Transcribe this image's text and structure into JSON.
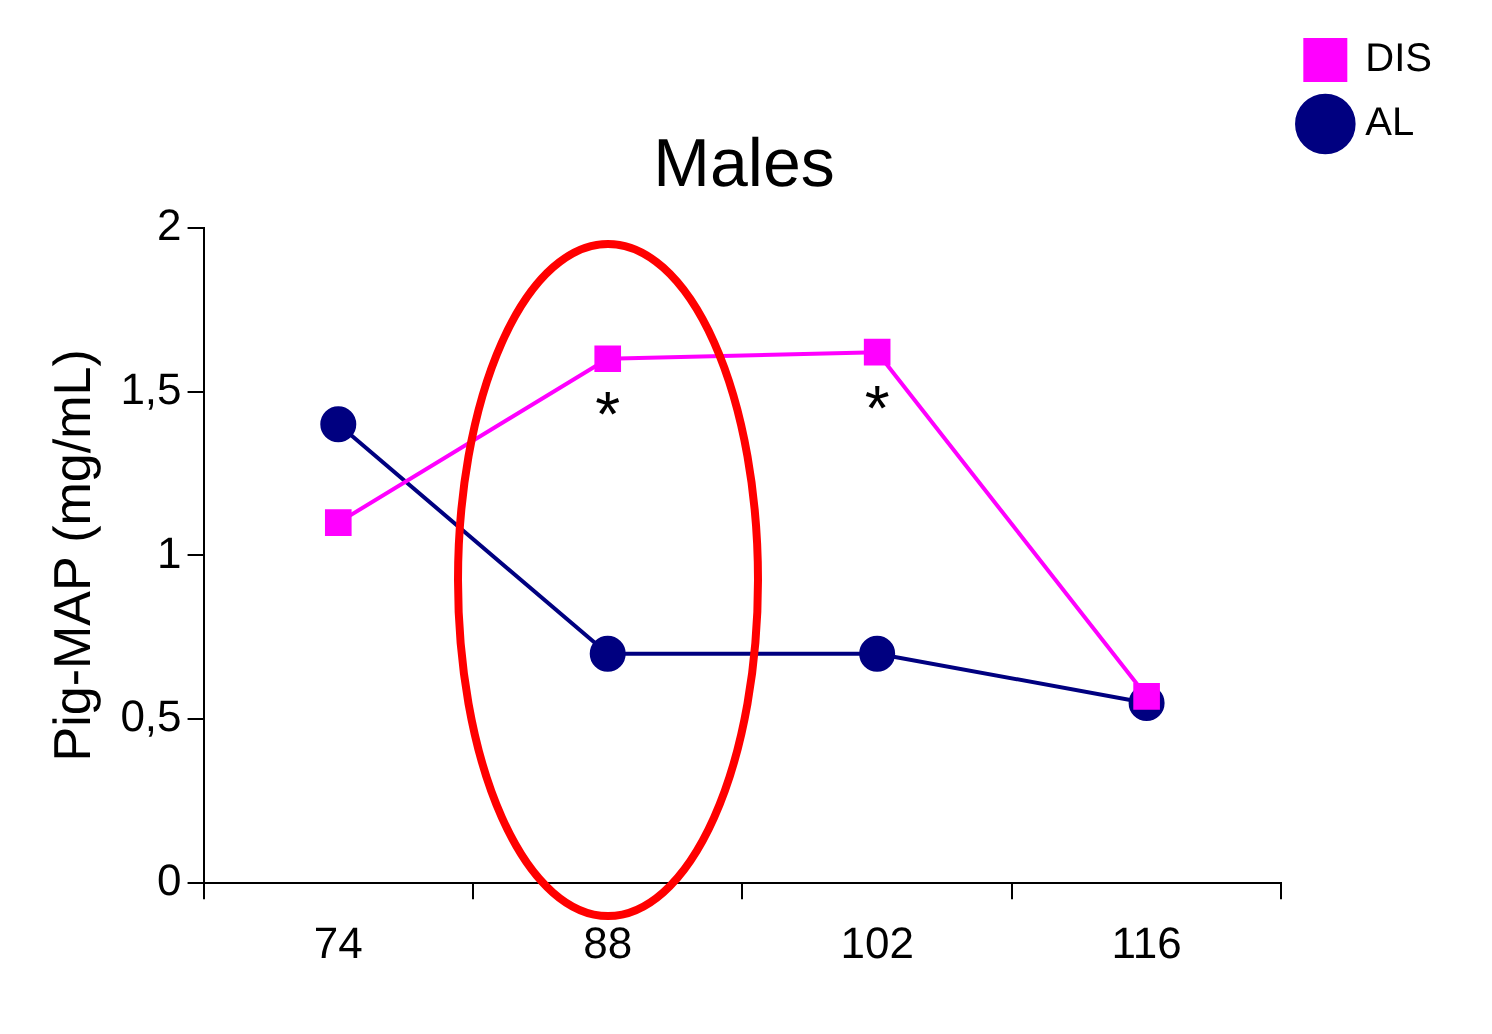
{
  "chart_data": {
    "type": "line",
    "title": "Males",
    "ylabel": "Pig-MAP (mg/mL)",
    "categories": [
      "74",
      "88",
      "102",
      "116"
    ],
    "series": [
      {
        "name": "AL",
        "color": "#000080",
        "values": [
          1.4,
          0.7,
          0.7,
          0.55
        ],
        "marker": "circle"
      },
      {
        "name": "DIS",
        "color": "#ff00ff",
        "values": [
          1.1,
          1.6,
          1.62,
          0.57
        ],
        "marker": "square"
      }
    ],
    "ylim": [
      0,
      2
    ],
    "yticks": [
      0,
      {
        "value": 0.5,
        "label": "0,5"
      },
      1,
      {
        "value": 1.5,
        "label": "1,5"
      },
      2
    ],
    "annotations": [
      {
        "text": "*",
        "x": "88",
        "y": 1.6
      },
      {
        "text": "*",
        "x": "102",
        "y": 1.62
      }
    ],
    "grid": false,
    "legend": "top right",
    "line_style": "solid"
  }
}
